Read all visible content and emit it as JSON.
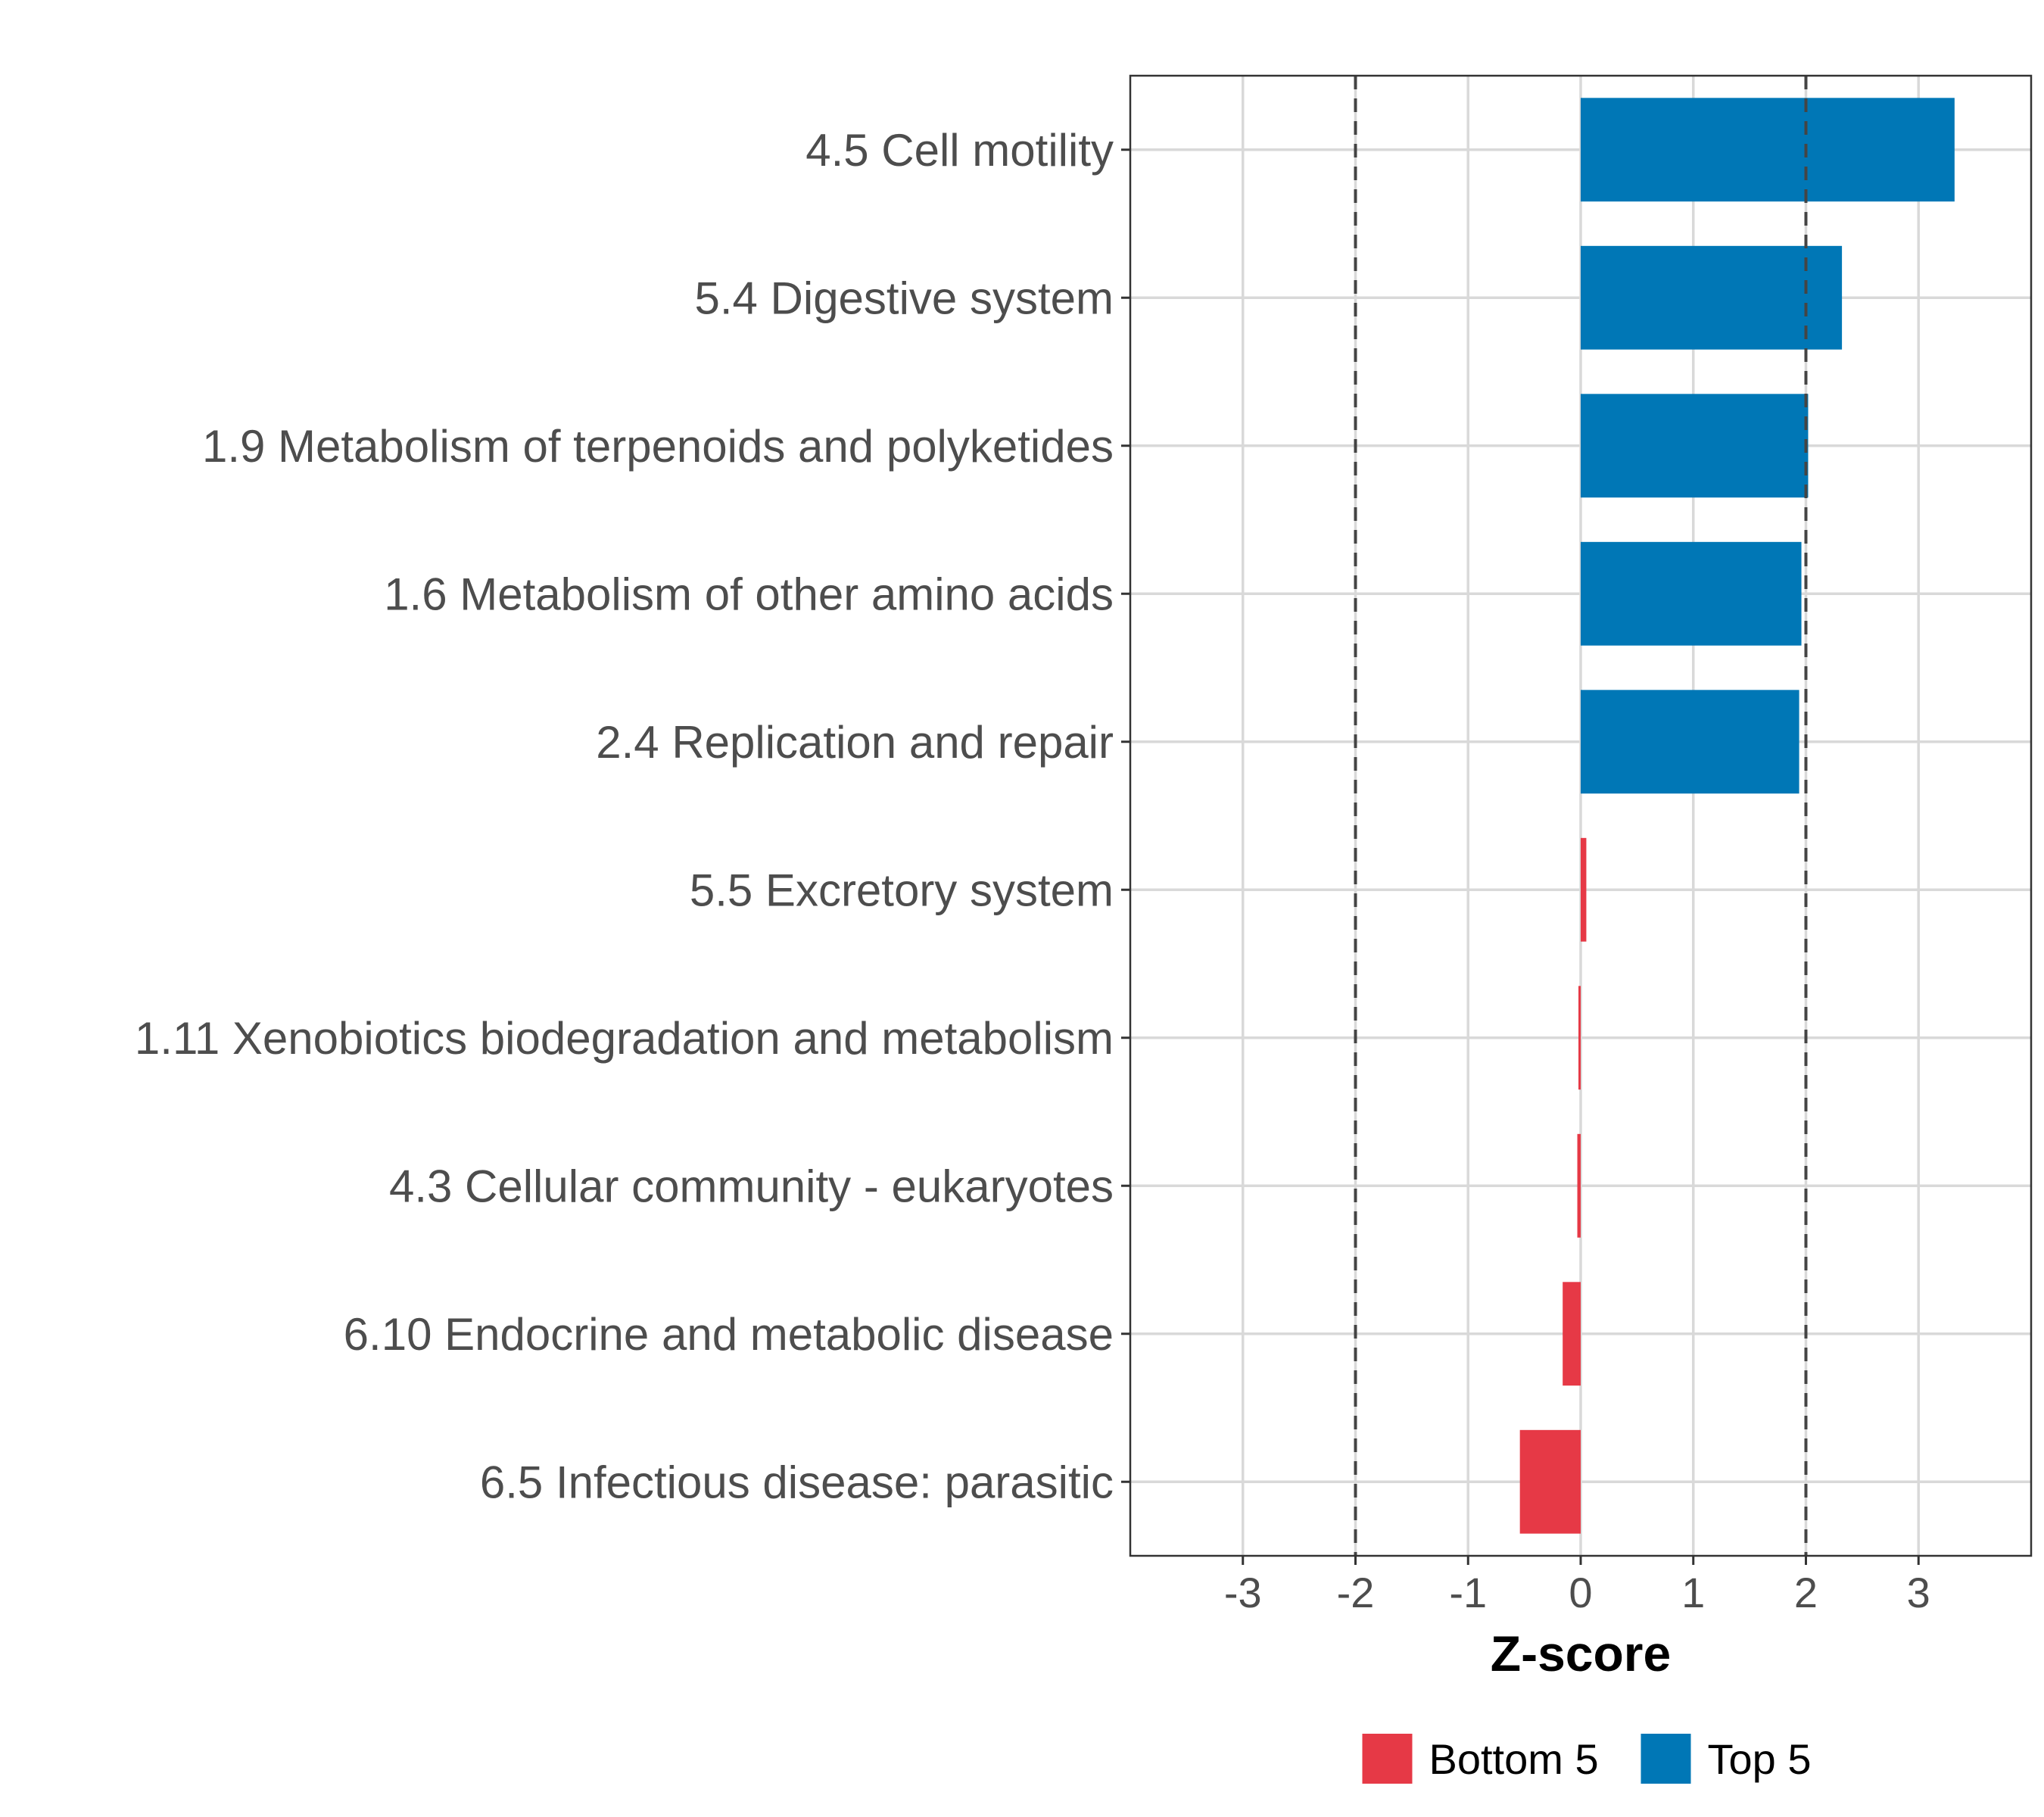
{
  "chart_data": {
    "type": "bar",
    "orientation": "horizontal",
    "title": "",
    "xlabel": "Z-score",
    "ylabel": "",
    "xlim": [
      -4,
      4
    ],
    "xticks": [
      -3,
      -2,
      -1,
      0,
      1,
      2,
      3
    ],
    "xtick_labels": [
      "-3",
      "-2",
      "-1",
      "0",
      "1",
      "2",
      "3"
    ],
    "reference_lines": [
      -2,
      2
    ],
    "grid": true,
    "legend_position": "bottom",
    "categories": [
      "4.5 Cell motility",
      "5.4 Digestive system",
      "1.9 Metabolism of terpenoids and polyketides",
      "1.6 Metabolism of other amino acids",
      "2.4 Replication and repair",
      "5.5 Excretory system",
      "1.11 Xenobiotics biodegradation and metabolism",
      "4.3 Cellular community - eukaryotes",
      "6.10 Endocrine and metabolic disease",
      "6.5 Infectious disease: parasitic"
    ],
    "values": [
      3.32,
      2.32,
      2.02,
      1.96,
      1.94,
      0.05,
      -0.02,
      -0.03,
      -0.16,
      -0.54
    ],
    "groups": [
      "Top 5",
      "Top 5",
      "Top 5",
      "Top 5",
      "Top 5",
      "Bottom 5",
      "Bottom 5",
      "Bottom 5",
      "Bottom 5",
      "Bottom 5"
    ],
    "legend": [
      {
        "label": "Bottom 5",
        "color": "#e63946"
      },
      {
        "label": "Top 5",
        "color": "#0077b6"
      }
    ]
  }
}
